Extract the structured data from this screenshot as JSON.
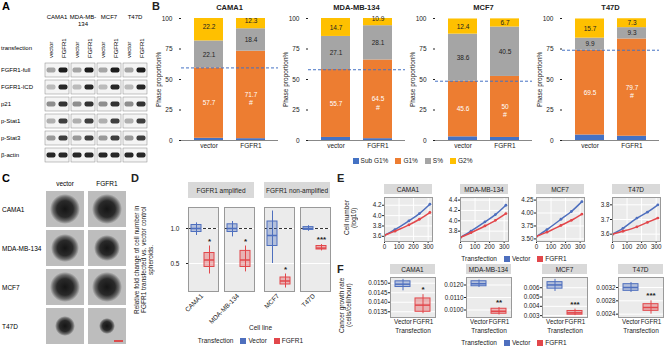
{
  "chart_data": [
    {
      "panel": "A",
      "type": "western_blot",
      "columns": [
        "CAMA1",
        "MDA-MB-134",
        "MCF7",
        "T47D"
      ],
      "row_header": "transfection",
      "lanes": [
        "vector",
        "FGFR1"
      ],
      "rows": [
        "FGFR1-full",
        "FGFR1-ICD",
        "p21",
        "p-Stat1",
        "p-Stat3",
        "β-actin"
      ]
    },
    {
      "panel": "B",
      "type": "bar",
      "stacked": true,
      "data_labels": true,
      "legend": "bottom",
      "ylabel": "Phase proportion%",
      "ylim": [
        0,
        100
      ],
      "yticks": [
        0,
        25,
        50,
        75,
        100
      ],
      "categories": [
        "vector",
        "FGFR1"
      ],
      "panels": [
        {
          "title": "CAMA1",
          "reference_line": 59.5,
          "annotations": [
            {
              "category": "FGFR1",
              "series": "G1%",
              "text": "#"
            }
          ],
          "series": [
            {
              "name": "Sub G1%",
              "color": "#4472c4",
              "values": [
                1.8,
                1.5
              ],
              "value_labels": [
                null,
                null
              ]
            },
            {
              "name": "G1%",
              "color": "#ed7d31",
              "values": [
                57.7,
                71.7
              ]
            },
            {
              "name": "S%",
              "color": "#a5a5a5",
              "values": [
                22.1,
                18.4
              ]
            },
            {
              "name": "G2%",
              "color": "#ffc000",
              "values": [
                22.2,
                12.3
              ]
            }
          ]
        },
        {
          "title": "MDA-MB-134",
          "reference_line": 58,
          "annotations": [
            {
              "category": "FGFR1",
              "series": "G1%",
              "text": "#"
            }
          ],
          "series": [
            {
              "name": "Sub G1%",
              "color": "#4472c4",
              "values": [
                2.5,
                1.5
              ],
              "value_labels": [
                null,
                null
              ]
            },
            {
              "name": "G1%",
              "color": "#ed7d31",
              "values": [
                55.7,
                64.5
              ]
            },
            {
              "name": "S%",
              "color": "#a5a5a5",
              "values": [
                27.1,
                28.1
              ]
            },
            {
              "name": "G2%",
              "color": "#ffc000",
              "values": [
                14.7,
                10.9
              ]
            }
          ]
        },
        {
          "title": "MCF7",
          "reference_line": 48.6,
          "annotations": [
            {
              "category": "FGFR1",
              "series": "G1%",
              "text": "#"
            }
          ],
          "series": [
            {
              "name": "Sub G1%",
              "color": "#4472c4",
              "values": [
                3,
                2.5
              ],
              "value_labels": [
                null,
                null
              ]
            },
            {
              "name": "G1%",
              "color": "#ed7d31",
              "values": [
                45.6,
                50
              ]
            },
            {
              "name": "S%",
              "color": "#a5a5a5",
              "values": [
                38.6,
                40.5
              ]
            },
            {
              "name": "G2%",
              "color": "#ffc000",
              "values": [
                12.4,
                6.7
              ]
            }
          ]
        },
        {
          "title": "T47D",
          "reference_line": 74,
          "annotations": [
            {
              "category": "FGFR1",
              "series": "G1%",
              "text": "#"
            }
          ],
          "series": [
            {
              "name": "Sub G1%",
              "color": "#4472c4",
              "values": [
                4.5,
                3.5
              ],
              "value_labels": [
                null,
                null
              ]
            },
            {
              "name": "G1%",
              "color": "#ed7d31",
              "values": [
                69.5,
                79.7
              ]
            },
            {
              "name": "S%",
              "color": "#a5a5a5",
              "values": [
                9.9,
                9.3
              ]
            },
            {
              "name": "G2%",
              "color": "#ffc000",
              "values": [
                15.7,
                7.3
              ]
            }
          ]
        }
      ]
    },
    {
      "panel": "C",
      "type": "image_grid",
      "columns": [
        "vector",
        "FGFR1"
      ],
      "rows": [
        "CAMA1",
        "MDA-MB-134",
        "MCF7",
        "T47D"
      ]
    },
    {
      "panel": "D",
      "type": "box",
      "grid": true,
      "legend": "bottom",
      "ylabel": "Relative fold change of cell number in FGFR1 transfected vs. vector control spheroids.",
      "xlabel": "Cell line",
      "legend_title": "Transfection",
      "ylim": [
        0.1,
        1.3
      ],
      "yticks": [
        0.5,
        {
          "value": 1,
          "label": "1.0"
        }
      ],
      "reference_line": 1,
      "series": [
        {
          "name": "Vector",
          "color": "#4e6fbe"
        },
        {
          "name": "FGFR1",
          "color": "#e2474b"
        }
      ],
      "groups": [
        {
          "title": "FGFR1 amplified",
          "categories": [
            "CAMA1",
            "MDA-MB-134"
          ]
        },
        {
          "title": "FGFR1 non-amplified",
          "categories": [
            "MCF7",
            "T47D"
          ]
        }
      ],
      "boxes": [
        {
          "category": "CAMA1",
          "series": "Vector",
          "min": 0.9,
          "q1": 0.95,
          "median": 1.0,
          "q3": 1.05,
          "max": 1.08
        },
        {
          "category": "CAMA1",
          "series": "FGFR1",
          "min": 0.35,
          "q1": 0.45,
          "median": 0.55,
          "q3": 0.65,
          "max": 0.75
        },
        {
          "category": "MDA-MB-134",
          "series": "Vector",
          "min": 0.88,
          "q1": 0.95,
          "median": 1.0,
          "q3": 1.06,
          "max": 1.1
        },
        {
          "category": "MDA-MB-134",
          "series": "FGFR1",
          "min": 0.38,
          "q1": 0.45,
          "median": 0.55,
          "q3": 0.68,
          "max": 0.75
        },
        {
          "category": "MCF7",
          "series": "Vector",
          "min": 0.5,
          "q1": 0.75,
          "median": 0.9,
          "q3": 1.1,
          "max": 1.25
        },
        {
          "category": "MCF7",
          "series": "FGFR1",
          "min": 0.15,
          "q1": 0.2,
          "median": 0.25,
          "q3": 0.3,
          "max": 0.35
        },
        {
          "category": "T47D",
          "series": "Vector",
          "min": 0.96,
          "q1": 0.98,
          "median": 1.0,
          "q3": 1.02,
          "max": 1.04
        },
        {
          "category": "T47D",
          "series": "FGFR1",
          "min": 0.68,
          "q1": 0.7,
          "median": 0.72,
          "q3": 0.75,
          "max": 0.77
        }
      ],
      "annotations": [
        {
          "category": "CAMA1",
          "series": "FGFR1",
          "text": "*"
        },
        {
          "category": "MDA-MB-134",
          "series": "FGFR1",
          "text": "*"
        },
        {
          "category": "MCF7",
          "series": "FGFR1",
          "text": "*"
        },
        {
          "category": "T47D",
          "series": "FGFR1",
          "text": "***"
        }
      ]
    },
    {
      "panel": "E",
      "type": "line",
      "grid": true,
      "marker": "circle",
      "legend": "bottom",
      "ylabel": "Cell number (log10)",
      "legend_title": "Transfection",
      "x": [
        0,
        72,
        168,
        240,
        312
      ],
      "xlim": [
        0,
        330
      ],
      "xticks": [
        0,
        100,
        200,
        300
      ],
      "panels": [
        {
          "title": "CAMA1",
          "ylim": [
            3.5,
            4.35
          ],
          "yticks": [
            3.6,
            3.8,
            {
              "value": 4,
              "label": "4.0"
            },
            4.2
          ],
          "series": [
            {
              "name": "Vector",
              "color": "#4e6fbe",
              "values": [
                3.62,
                3.73,
                3.9,
                4.04,
                4.22
              ]
            },
            {
              "name": "FGFR1",
              "color": "#e2474b",
              "values": [
                3.62,
                3.7,
                3.82,
                3.93,
                4.06
              ]
            }
          ]
        },
        {
          "title": "MDA-MB-134",
          "ylim": [
            3.6,
            4.45
          ],
          "yticks": [
            3.8,
            {
              "value": 4,
              "label": "4.0"
            },
            4.2,
            4.4
          ],
          "series": [
            {
              "name": "Vector",
              "color": "#4e6fbe",
              "values": [
                3.68,
                3.8,
                3.98,
                4.12,
                4.3
              ]
            },
            {
              "name": "FGFR1",
              "color": "#e2474b",
              "values": [
                3.68,
                3.77,
                3.9,
                4.01,
                4.14
              ]
            }
          ]
        },
        {
          "title": "MCF7",
          "ylim": [
            3.45,
            4.3
          ],
          "yticks": [
            {
              "value": 3.5,
              "label": "3.50"
            },
            3.75,
            {
              "value": 4,
              "label": "4.00"
            },
            4.25
          ],
          "series": [
            {
              "name": "Vector",
              "color": "#4e6fbe",
              "values": [
                3.55,
                3.68,
                3.88,
                4.03,
                4.22
              ]
            },
            {
              "name": "FGFR1",
              "color": "#e2474b",
              "values": [
                3.55,
                3.63,
                3.76,
                3.86,
                3.98
              ]
            }
          ]
        },
        {
          "title": "T47D",
          "ylim": [
            3.55,
            3.85
          ],
          "yticks": [
            3.6,
            3.7,
            3.8
          ],
          "series": [
            {
              "name": "Vector",
              "color": "#4e6fbe",
              "values": [
                3.6,
                3.64,
                3.71,
                3.75,
                3.8
              ]
            },
            {
              "name": "FGFR1",
              "color": "#e2474b",
              "values": [
                3.6,
                3.62,
                3.65,
                3.68,
                3.71
              ]
            }
          ]
        }
      ]
    },
    {
      "panel": "F",
      "type": "box",
      "grid": true,
      "legend": "bottom",
      "ylabel": "Cancer growth rate (cells/cell/hour)",
      "xlabel": "Transfection",
      "legend_title": "Transfection",
      "categories": [
        "Vector",
        "FGFR1"
      ],
      "series": [
        {
          "name": "Vector",
          "color": "#4e6fbe"
        },
        {
          "name": "FGFR1",
          "color": "#e2474b"
        }
      ],
      "panels": [
        {
          "title": "CAMA1",
          "ylim": [
            0.0132,
            0.0153
          ],
          "yticks": [
            0.0135,
            {
              "value": 0.014,
              "label": "0.0140"
            },
            0.0145,
            {
              "value": 0.015,
              "label": "0.0150"
            }
          ],
          "boxes": [
            {
              "category": "Vector",
              "min": 0.0146,
              "q1": 0.0148,
              "median": 0.01495,
              "q3": 0.0151,
              "max": 0.0152
            },
            {
              "category": "FGFR1",
              "min": 0.0134,
              "q1": 0.0135,
              "median": 0.01385,
              "q3": 0.0142,
              "max": 0.0144
            }
          ],
          "annotations": [
            {
              "category": "FGFR1",
              "text": "*"
            }
          ]
        },
        {
          "title": "MDA-MB-134",
          "ylim": [
            0.0094,
            0.0126
          ],
          "yticks": [
            {
              "value": 0.01,
              "label": "0.0100"
            },
            {
              "value": 0.011,
              "label": "0.0110"
            },
            {
              "value": 0.012,
              "label": "0.0120"
            }
          ],
          "boxes": [
            {
              "category": "Vector",
              "min": 0.0118,
              "q1": 0.0119,
              "median": 0.0121,
              "q3": 0.0123,
              "max": 0.0124
            },
            {
              "category": "FGFR1",
              "min": 0.0096,
              "q1": 0.0097,
              "median": 0.0099,
              "q3": 0.0101,
              "max": 0.0102
            }
          ],
          "annotations": [
            {
              "category": "FGFR1",
              "text": "**"
            }
          ]
        },
        {
          "title": "MCF7",
          "ylim": [
            0.0028,
            0.0071
          ],
          "yticks": [
            0.003,
            0.004,
            0.005,
            0.006
          ],
          "boxes": [
            {
              "category": "Vector",
              "min": 0.0056,
              "q1": 0.0059,
              "median": 0.0063,
              "q3": 0.0066,
              "max": 0.0069
            },
            {
              "category": "FGFR1",
              "min": 0.003,
              "q1": 0.0031,
              "median": 0.0033,
              "q3": 0.0035,
              "max": 0.0037
            }
          ],
          "annotations": [
            {
              "category": "FGFR1",
              "text": "***"
            }
          ]
        },
        {
          "title": "T47D",
          "ylim": [
            0.0023,
            0.0035
          ],
          "yticks": [
            0.0024,
            0.0028,
            0.0032
          ],
          "boxes": [
            {
              "category": "Vector",
              "min": 0.00305,
              "q1": 0.0031,
              "median": 0.0032,
              "q3": 0.0033,
              "max": 0.00335
            },
            {
              "category": "FGFR1",
              "min": 0.0024,
              "q1": 0.0025,
              "median": 0.0026,
              "q3": 0.0027,
              "max": 0.0028
            }
          ],
          "annotations": [
            {
              "category": "FGFR1",
              "text": "***"
            }
          ]
        }
      ]
    }
  ]
}
